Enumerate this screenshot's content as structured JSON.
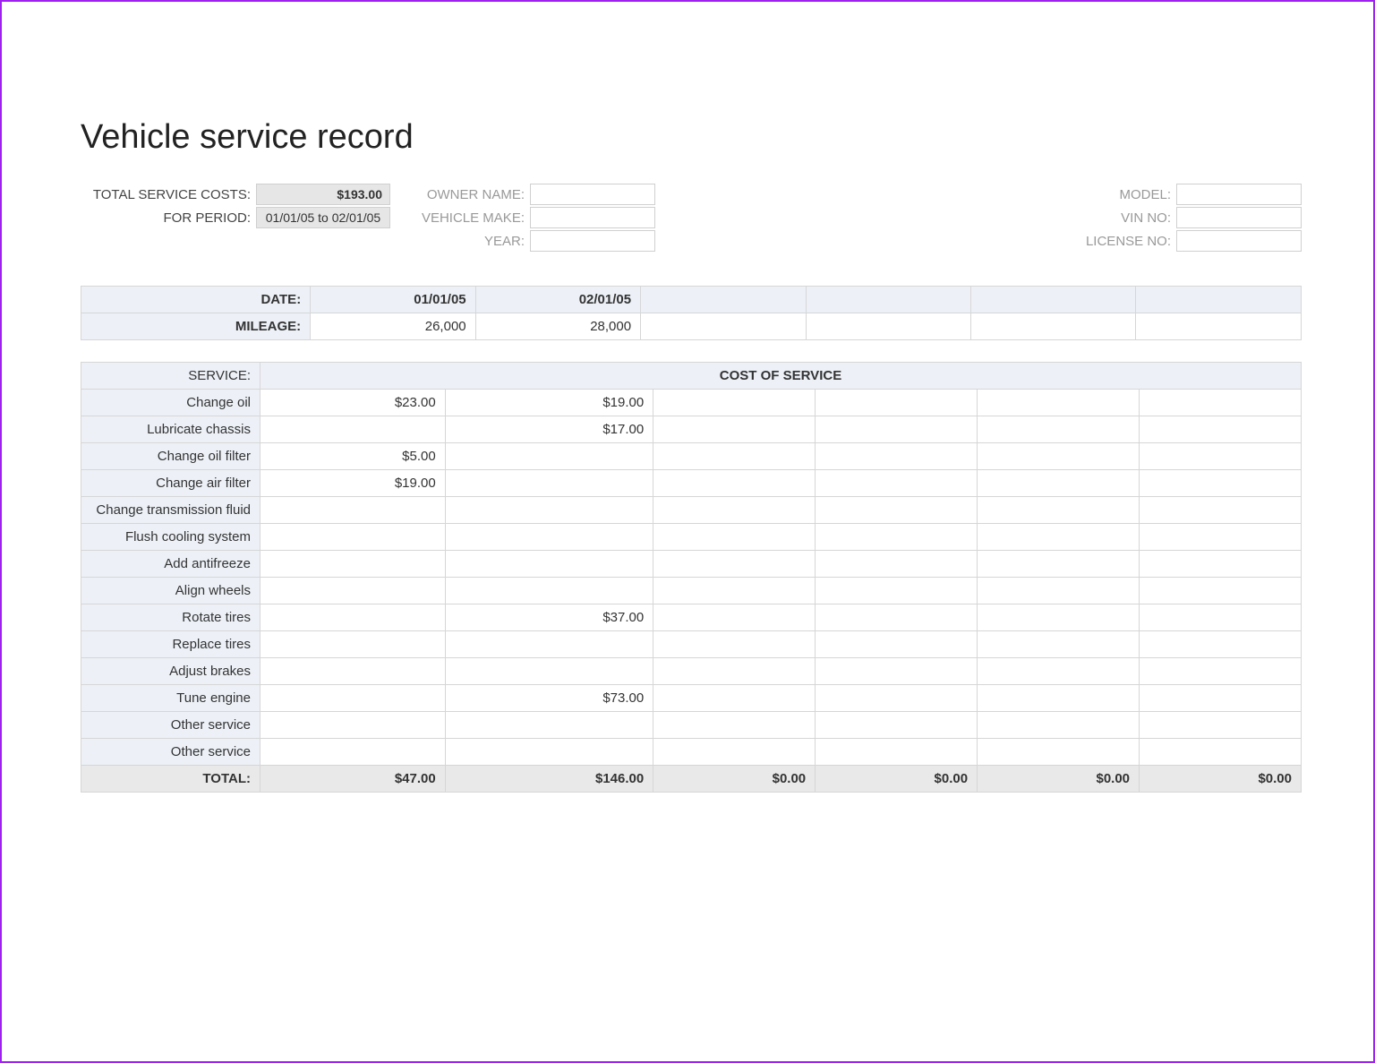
{
  "title": "Vehicle service record",
  "colors": {
    "page_border": "#a020f0",
    "header_bg": "#edf1f7",
    "total_bg": "#e9e9e9",
    "cell_border": "#d6d6d6",
    "readonly_bg": "#e6e6e6",
    "muted_text": "#999999",
    "text": "#333333"
  },
  "summary": {
    "total_label": "TOTAL SERVICE COSTS:",
    "total_value": "$193.00",
    "period_label": "FOR PERIOD:",
    "period_value": "01/01/05 to 02/01/05",
    "owner_label": "OWNER NAME:",
    "owner_value": "",
    "make_label": "VEHICLE MAKE:",
    "make_value": "",
    "year_label": "YEAR:",
    "year_value": "",
    "model_label": "MODEL:",
    "model_value": "",
    "vin_label": "VIN NO:",
    "vin_value": "",
    "license_label": "LICENSE NO:",
    "license_value": ""
  },
  "date_mileage": {
    "date_label": "DATE:",
    "mileage_label": "MILEAGE:",
    "columns": [
      {
        "date": "01/01/05",
        "mileage": "26,000"
      },
      {
        "date": "02/01/05",
        "mileage": "28,000"
      },
      {
        "date": "",
        "mileage": ""
      },
      {
        "date": "",
        "mileage": ""
      },
      {
        "date": "",
        "mileage": ""
      },
      {
        "date": "",
        "mileage": ""
      }
    ]
  },
  "service_table": {
    "service_header": "SERVICE:",
    "cost_header": "COST OF SERVICE",
    "total_label": "TOTAL:",
    "num_cost_cols": 6,
    "rows": [
      {
        "label": "Change oil",
        "costs": [
          "$23.00",
          "$19.00",
          "",
          "",
          "",
          ""
        ]
      },
      {
        "label": "Lubricate chassis",
        "costs": [
          "",
          "$17.00",
          "",
          "",
          "",
          ""
        ]
      },
      {
        "label": "Change oil filter",
        "costs": [
          "$5.00",
          "",
          "",
          "",
          "",
          ""
        ]
      },
      {
        "label": "Change air filter",
        "costs": [
          "$19.00",
          "",
          "",
          "",
          "",
          ""
        ]
      },
      {
        "label": "Change transmission fluid",
        "costs": [
          "",
          "",
          "",
          "",
          "",
          ""
        ]
      },
      {
        "label": "Flush cooling system",
        "costs": [
          "",
          "",
          "",
          "",
          "",
          ""
        ]
      },
      {
        "label": "Add antifreeze",
        "costs": [
          "",
          "",
          "",
          "",
          "",
          ""
        ]
      },
      {
        "label": "Align wheels",
        "costs": [
          "",
          "",
          "",
          "",
          "",
          ""
        ]
      },
      {
        "label": "Rotate tires",
        "costs": [
          "",
          "$37.00",
          "",
          "",
          "",
          ""
        ]
      },
      {
        "label": "Replace tires",
        "costs": [
          "",
          "",
          "",
          "",
          "",
          ""
        ]
      },
      {
        "label": "Adjust brakes",
        "costs": [
          "",
          "",
          "",
          "",
          "",
          ""
        ]
      },
      {
        "label": "Tune engine",
        "costs": [
          "",
          "$73.00",
          "",
          "",
          "",
          ""
        ]
      },
      {
        "label": "Other service",
        "costs": [
          "",
          "",
          "",
          "",
          "",
          ""
        ]
      },
      {
        "label": "Other service",
        "costs": [
          "",
          "",
          "",
          "",
          "",
          ""
        ]
      }
    ],
    "totals": [
      "$47.00",
      "$146.00",
      "$0.00",
      "$0.00",
      "$0.00",
      "$0.00"
    ]
  }
}
